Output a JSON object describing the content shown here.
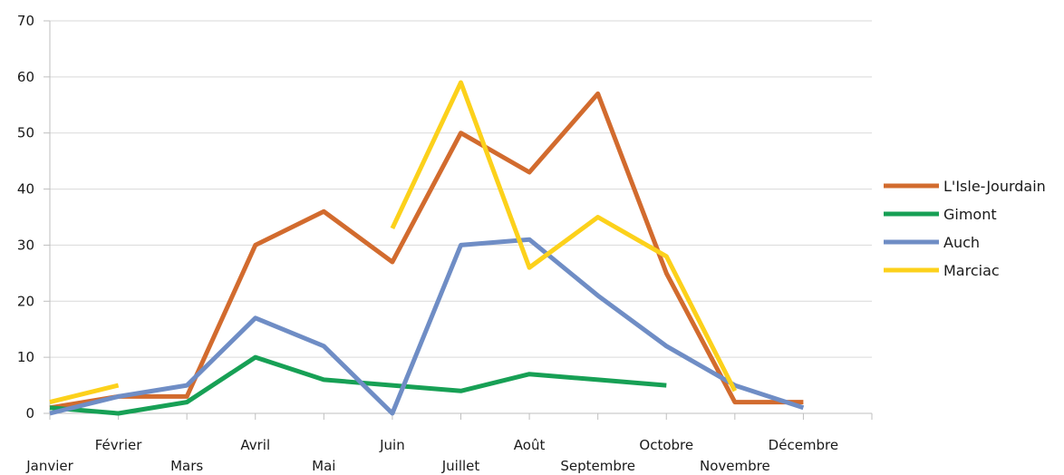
{
  "chart_data": {
    "type": "line",
    "categories": [
      "Janvier",
      "Février",
      "Mars",
      "Avril",
      "Mai",
      "Juin",
      "Juillet",
      "Août",
      "Septembre",
      "Octobre",
      "Novembre",
      "Décembre"
    ],
    "ylim": [
      0,
      70
    ],
    "yticks": [
      0,
      10,
      20,
      30,
      40,
      50,
      60,
      70
    ],
    "grid": true,
    "legend_position": "right",
    "series": [
      {
        "name": "L'Isle-Jourdain",
        "color": "#d26b2e",
        "values": [
          1,
          3,
          3,
          30,
          36,
          27,
          50,
          43,
          57,
          25,
          2,
          2
        ]
      },
      {
        "name": "Gimont",
        "color": "#17a055",
        "values": [
          1,
          0,
          2,
          10,
          6,
          5,
          4,
          7,
          6,
          5,
          null,
          null
        ]
      },
      {
        "name": "Auch",
        "color": "#6f8dc5",
        "values": [
          0,
          3,
          5,
          17,
          12,
          0,
          30,
          31,
          21,
          12,
          5,
          1
        ]
      },
      {
        "name": "Marciac",
        "color": "#fcd11b",
        "values": [
          2,
          5,
          null,
          null,
          null,
          33,
          59,
          26,
          35,
          28,
          4,
          null
        ]
      }
    ]
  }
}
